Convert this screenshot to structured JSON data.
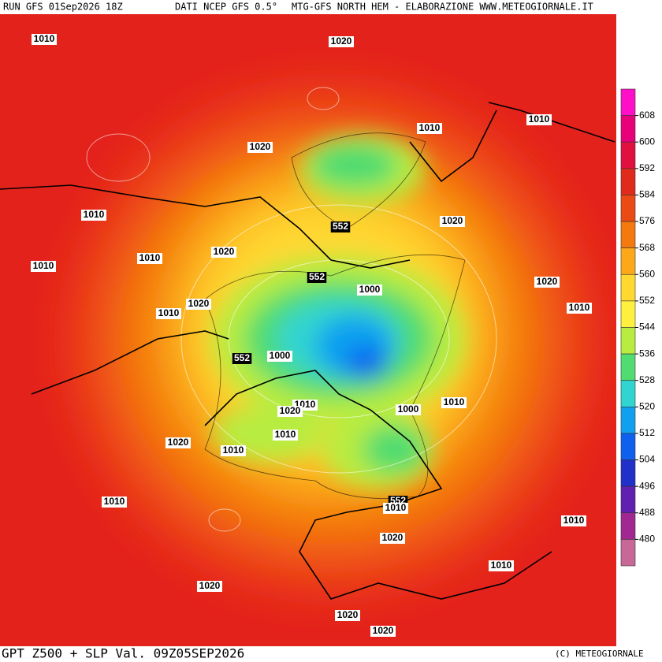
{
  "header": {
    "run": "RUN GFS 01Sep2026 18Z",
    "source": "DATI NCEP GFS 0.5°",
    "credit": "MTG-GFS NORTH HEM - ELABORAZIONE WWW.METEOGIORNALE.IT"
  },
  "footer": {
    "title": "GPT Z500 + SLP Val. 09Z05SEP2026",
    "copyright": "(C) METEOGIORNALE"
  },
  "colorbar": {
    "labels": [
      608,
      600,
      592,
      584,
      576,
      568,
      560,
      552,
      544,
      536,
      528,
      520,
      512,
      504,
      496,
      488,
      480
    ],
    "colors": [
      "#ff10c8",
      "#e8007a",
      "#e01040",
      "#e02a1c",
      "#ec4a14",
      "#f47a10",
      "#fca818",
      "#ffd830",
      "#fff040",
      "#b8ec40",
      "#50dc70",
      "#30d4d0",
      "#10a0f0",
      "#1060f0",
      "#2030c8",
      "#6020b0",
      "#a02890",
      "#c86898"
    ]
  },
  "contour_labels": [
    "1010",
    "1020",
    "1020",
    "1010",
    "1010",
    "1010",
    "552",
    "1020",
    "1010",
    "1020",
    "1010",
    "552",
    "1000",
    "1020",
    "1020",
    "1010",
    "1010",
    "552",
    "1000",
    "1010",
    "1020",
    "1000",
    "1010",
    "1010",
    "1020",
    "1010",
    "552",
    "1010",
    "1010",
    "1020",
    "1010",
    "1010",
    "1020",
    "1020",
    "1020"
  ]
}
